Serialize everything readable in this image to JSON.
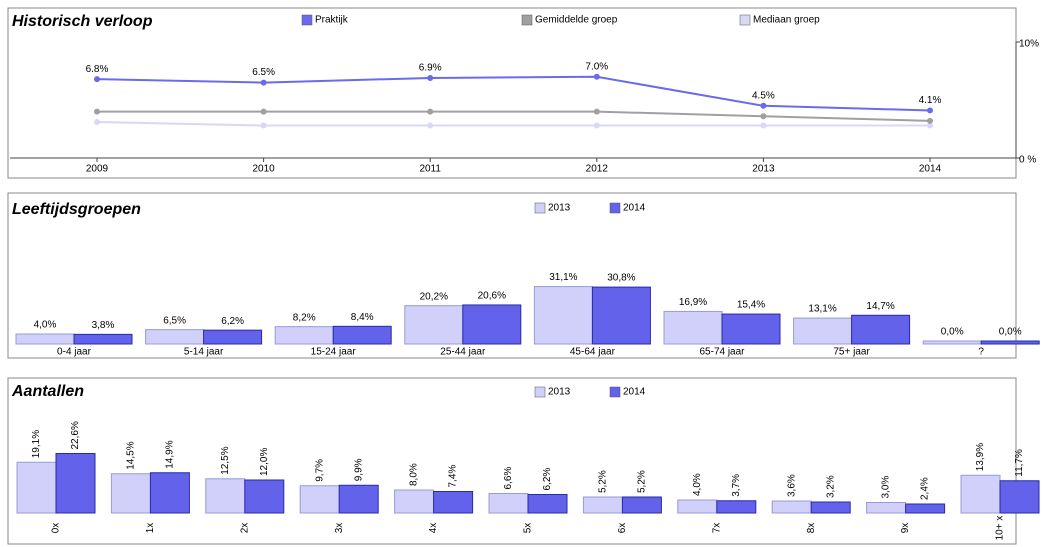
{
  "chart_data": [
    {
      "type": "line",
      "title": "Historisch verloop",
      "categories": [
        "2009",
        "2010",
        "2011",
        "2012",
        "2013",
        "2014"
      ],
      "series": [
        {
          "name": "Praktijk",
          "color": "#6a6aee",
          "values": [
            6.8,
            6.5,
            6.9,
            7.0,
            4.5,
            4.1
          ],
          "value_labels": [
            "6.8%",
            "6.5%",
            "6.9%",
            "7.0%",
            "4.5%",
            "4.1%"
          ]
        },
        {
          "name": "Gemiddelde groep",
          "color": "#a0a0a0",
          "values": [
            4.0,
            4.0,
            4.0,
            4.0,
            3.6,
            3.2
          ]
        },
        {
          "name": "Mediaan groep",
          "color": "#d8d8f4",
          "values": [
            3.1,
            2.8,
            2.8,
            2.8,
            2.8,
            2.8
          ]
        }
      ],
      "ylim": [
        0,
        10
      ],
      "yticks": [
        {
          "value": 0,
          "label": "0 %"
        },
        {
          "value": 10,
          "label": "10%"
        }
      ]
    },
    {
      "type": "bar",
      "title": "Leeftijdsgroepen",
      "categories": [
        "0-4 jaar",
        "5-14 jaar",
        "15-24 jaar",
        "25-44 jaar",
        "45-64 jaar",
        "65-74 jaar",
        "75+ jaar",
        "?"
      ],
      "series": [
        {
          "name": "2013",
          "color": "#d0d0fa",
          "values": [
            4.0,
            6.5,
            8.2,
            20.2,
            31.1,
            16.9,
            13.1,
            0.0
          ],
          "value_labels": [
            "4,0%",
            "6,5%",
            "8,2%",
            "20,2%",
            "31,1%",
            "16,9%",
            "13,1%",
            "0,0%"
          ]
        },
        {
          "name": "2014",
          "color": "#6262ea",
          "values": [
            3.8,
            6.2,
            8.4,
            20.6,
            30.8,
            15.4,
            14.7,
            0.0
          ],
          "value_labels": [
            "3,8%",
            "6,2%",
            "8,4%",
            "20,6%",
            "30,8%",
            "15,4%",
            "14,7%",
            "0,0%"
          ]
        }
      ]
    },
    {
      "type": "bar",
      "title": "Aantallen",
      "categories": [
        "0x",
        "1x",
        "2x",
        "3x",
        "4x",
        "5x",
        "6x",
        "7x",
        "8x",
        "9x",
        "10+ x"
      ],
      "series": [
        {
          "name": "2013",
          "color": "#d0d0fa",
          "values": [
            19.1,
            14.5,
            12.5,
            9.7,
            8.0,
            6.6,
            5.2,
            4.0,
            3.6,
            3.0,
            13.9
          ],
          "value_labels": [
            "19,1%",
            "14,5%",
            "12,5%",
            "9,7%",
            "8,0%",
            "6,6%",
            "5,2%",
            "4,0%",
            "3,6%",
            "3,0%",
            "13,9%"
          ]
        },
        {
          "name": "2014",
          "color": "#6262ea",
          "values": [
            22.6,
            14.9,
            12.0,
            9.9,
            7.4,
            6.2,
            5.2,
            3.7,
            3.2,
            2.4,
            11.7
          ],
          "value_labels": [
            "22,6%",
            "14,9%",
            "12,0%",
            "9,9%",
            "7,4%",
            "6,2%",
            "5,2%",
            "3,7%",
            "3,2%",
            "2,4%",
            "11,7%"
          ]
        }
      ]
    }
  ]
}
